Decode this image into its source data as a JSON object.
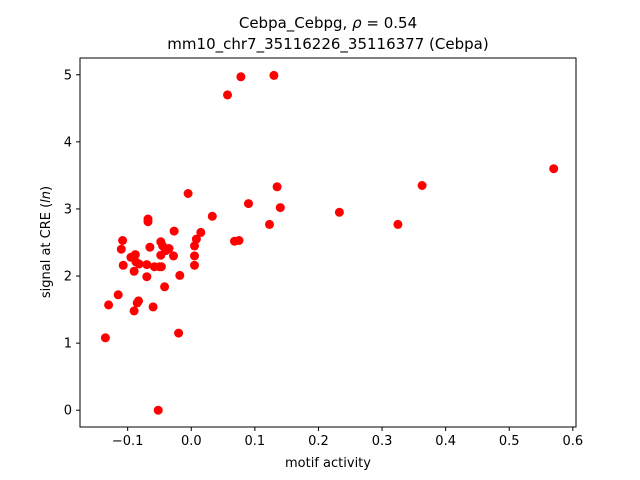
{
  "chart_data": {
    "type": "scatter",
    "title_line1_pre": "Cebpa_Cebpg, ",
    "title_rho_symbol": "ρ",
    "title_rho_value": " = 0.54",
    "title_line2": "mm10_chr7_35116226_35116377 (Cebpa)",
    "xlabel": "motif activity",
    "ylabel_pre": "signal at CRE (",
    "ylabel_italic": "ln",
    "ylabel_post": ")",
    "xlim": [
      -0.175,
      0.605
    ],
    "ylim": [
      -0.25,
      5.25
    ],
    "xticks": [
      -0.1,
      0.0,
      0.1,
      0.2,
      0.3,
      0.4,
      0.5,
      0.6
    ],
    "xtick_labels": [
      "−0.1",
      "0.0",
      "0.1",
      "0.2",
      "0.3",
      "0.4",
      "0.5",
      "0.6"
    ],
    "yticks": [
      0,
      1,
      2,
      3,
      4,
      5
    ],
    "ytick_labels": [
      "0",
      "1",
      "2",
      "3",
      "4",
      "5"
    ],
    "marker_color": "#ff0000",
    "series": [
      {
        "points": [
          [
            -0.135,
            1.08
          ],
          [
            -0.13,
            1.57
          ],
          [
            -0.115,
            1.72
          ],
          [
            -0.11,
            2.4
          ],
          [
            -0.108,
            2.53
          ],
          [
            -0.107,
            2.16
          ],
          [
            -0.095,
            2.28
          ],
          [
            -0.09,
            1.48
          ],
          [
            -0.09,
            2.07
          ],
          [
            -0.088,
            2.32
          ],
          [
            -0.087,
            2.21
          ],
          [
            -0.085,
            1.6
          ],
          [
            -0.083,
            1.63
          ],
          [
            -0.082,
            2.18
          ],
          [
            -0.07,
            2.17
          ],
          [
            -0.07,
            1.99
          ],
          [
            -0.068,
            2.85
          ],
          [
            -0.068,
            2.81
          ],
          [
            -0.065,
            2.43
          ],
          [
            -0.06,
            1.54
          ],
          [
            -0.058,
            2.14
          ],
          [
            -0.052,
            0.0
          ],
          [
            -0.05,
            2.14
          ],
          [
            -0.048,
            2.51
          ],
          [
            -0.048,
            2.31
          ],
          [
            -0.047,
            2.14
          ],
          [
            -0.045,
            2.45
          ],
          [
            -0.042,
            1.84
          ],
          [
            -0.04,
            2.38
          ],
          [
            -0.035,
            2.41
          ],
          [
            -0.028,
            2.3
          ],
          [
            -0.027,
            2.67
          ],
          [
            -0.02,
            1.15
          ],
          [
            -0.018,
            2.01
          ],
          [
            -0.005,
            3.23
          ],
          [
            0.005,
            2.16
          ],
          [
            0.005,
            2.3
          ],
          [
            0.005,
            2.45
          ],
          [
            0.008,
            2.55
          ],
          [
            0.015,
            2.65
          ],
          [
            0.033,
            2.89
          ],
          [
            0.057,
            4.7
          ],
          [
            0.068,
            2.52
          ],
          [
            0.075,
            2.53
          ],
          [
            0.078,
            4.97
          ],
          [
            0.09,
            3.08
          ],
          [
            0.123,
            2.77
          ],
          [
            0.13,
            4.99
          ],
          [
            0.135,
            3.33
          ],
          [
            0.14,
            3.02
          ],
          [
            0.233,
            2.95
          ],
          [
            0.325,
            2.77
          ],
          [
            0.363,
            3.35
          ],
          [
            0.57,
            3.6
          ]
        ]
      }
    ]
  }
}
